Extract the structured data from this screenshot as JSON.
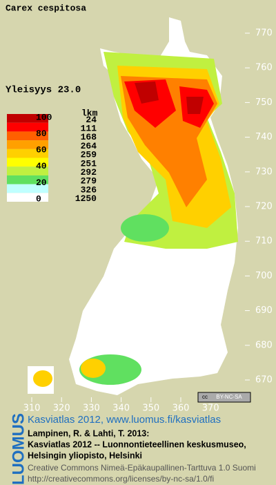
{
  "title": "Carex cespitosa",
  "frequency": "Yleisyys  23.0",
  "legend": {
    "scale": [
      100,
      80,
      60,
      40,
      20,
      0
    ],
    "count_header": "lkm",
    "classes": [
      {
        "color": "#c00000",
        "count": 24
      },
      {
        "color": "#ff0000",
        "count": 111
      },
      {
        "color": "#ff6000",
        "count": 168
      },
      {
        "color": "#ffa000",
        "count": 264
      },
      {
        "color": "#ffd000",
        "count": 259
      },
      {
        "color": "#ffff00",
        "count": 251
      },
      {
        "color": "#c0f040",
        "count": 292
      },
      {
        "color": "#60e060",
        "count": 279
      },
      {
        "color": "#c0ffff",
        "count": 326
      },
      {
        "color": "#ffffff",
        "count": 1250
      }
    ]
  },
  "map": {
    "northing_ticks": [
      770,
      760,
      750,
      740,
      730,
      720,
      710,
      700,
      690,
      680,
      670
    ],
    "easting_ticks": [
      310,
      320,
      330,
      340,
      350,
      360,
      370
    ]
  },
  "badge": {
    "symbol": "cc",
    "text": "BY-NC-SA"
  },
  "footer": {
    "logo": "LUOMUS",
    "link": "Kasviatlas 2012, www.luomus.fi/kasviatlas",
    "citation": [
      "Lampinen, R. & Lahti, T. 2013:",
      "Kasviatlas 2012 -- Luonnontieteellinen keskusmuseo,",
      "Helsingin yliopisto, Helsinki"
    ],
    "license": [
      "Creative Commons Nimeä-Epäkaupallinen-Tarttuva 1.0 Suomi",
      "http://creativecommons.org/licenses/by-nc-sa/1.0/fi"
    ]
  }
}
